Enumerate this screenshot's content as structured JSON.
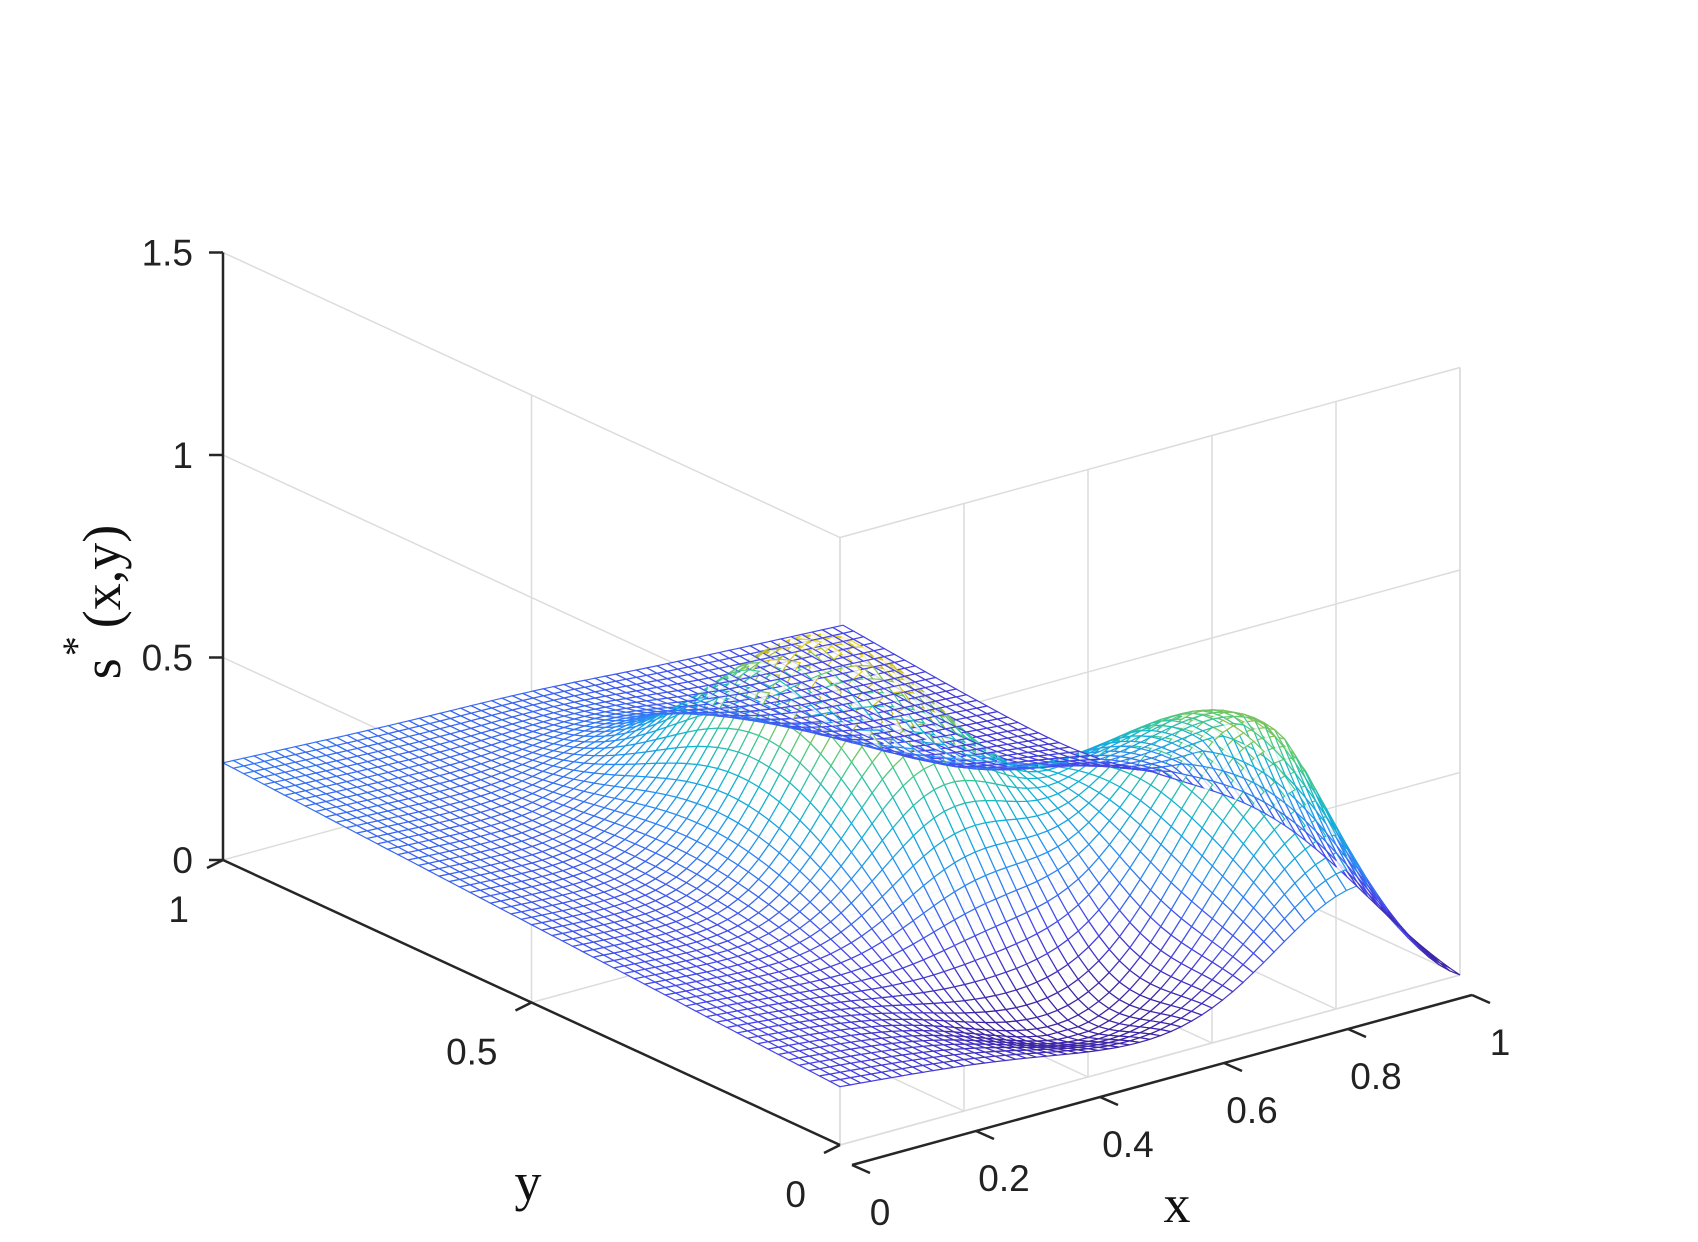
{
  "chart_data": {
    "type": "surface",
    "xlabel": "x",
    "ylabel": "y",
    "zlabel_base": "s",
    "zlabel_superscript": "*",
    "zlabel_args": "(x,y)",
    "xlim": [
      0,
      1
    ],
    "ylim": [
      0,
      1
    ],
    "zlim": [
      0,
      1.5
    ],
    "xticks": [
      0,
      0.2,
      0.4,
      0.6,
      0.8,
      1
    ],
    "xtick_labels": [
      "0",
      "0.2",
      "0.4",
      "0.6",
      "0.8",
      "1"
    ],
    "yticks": [
      0,
      0.5,
      1
    ],
    "ytick_labels": [
      "0",
      "0.5",
      "1"
    ],
    "zticks": [
      0,
      0.5,
      1,
      1.5
    ],
    "ztick_labels": [
      "0",
      "0.5",
      "1",
      "1.5"
    ],
    "grid": true,
    "view": "3-D mesh, viewed from the x=0, y=1 side",
    "colormap": "parula",
    "colormap_stops": [
      "#3e26a8",
      "#4746eb",
      "#2e87f7",
      "#12b2d7",
      "#48cb86",
      "#cbba1f",
      "#f5e626"
    ],
    "approx_features": {
      "peak_1": {
        "x": 0.5,
        "y": 0.5,
        "z": 0.7
      },
      "peak_2": {
        "x": 0.85,
        "y": 0.2,
        "z": 0.55
      },
      "trough": {
        "x": 0.5,
        "y": 0.15,
        "z": 0.13
      },
      "corner_x0_y1_z": 0.25,
      "corner_x1_y0_z": 0.0
    }
  }
}
